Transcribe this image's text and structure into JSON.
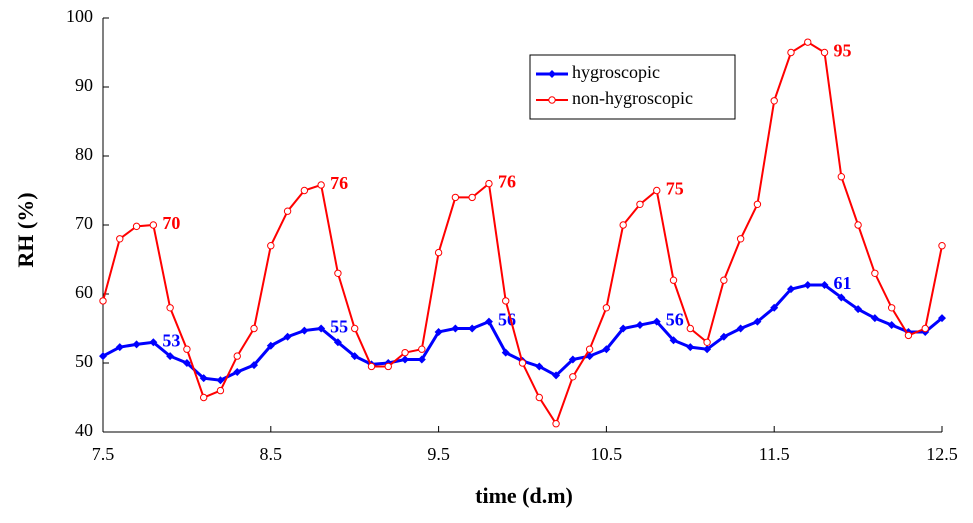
{
  "chart_data": {
    "type": "line",
    "x_label": "time (d.m)",
    "y_label": "RH (%)",
    "x": [
      7.5,
      7.6,
      7.7,
      7.8,
      7.9,
      8.0,
      8.1,
      8.2,
      8.3,
      8.4,
      8.5,
      8.6,
      8.7,
      8.8,
      8.9,
      9.0,
      9.1,
      9.2,
      9.3,
      9.4,
      9.5,
      9.6,
      9.7,
      9.8,
      9.9,
      10.0,
      10.1,
      10.2,
      10.3,
      10.4,
      10.5,
      10.6,
      10.7,
      10.8,
      10.9,
      11.0,
      11.1,
      11.2,
      11.3,
      11.4,
      11.5,
      11.6,
      11.7,
      11.8,
      11.9,
      12.0,
      12.1,
      12.2,
      12.3,
      12.4,
      12.5
    ],
    "series": [
      {
        "name": "hygroscopic",
        "color": "#0000ff",
        "marker": "diamond",
        "values": [
          51,
          52.3,
          52.7,
          53,
          51,
          50,
          47.8,
          47.5,
          48.7,
          49.7,
          52.5,
          53.8,
          54.7,
          55,
          53,
          51,
          49.8,
          50,
          50.5,
          50.5,
          54.5,
          55,
          55,
          56,
          51.5,
          50.3,
          49.5,
          48.2,
          50.5,
          51,
          52,
          55,
          55.5,
          56,
          53.3,
          52.3,
          52,
          53.8,
          55,
          56,
          58,
          60.7,
          61.3,
          61.3,
          59.5,
          57.8,
          56.5,
          55.5,
          54.5,
          54.5,
          56.5
        ],
        "value_labels": [
          null,
          null,
          null,
          "53",
          null,
          null,
          null,
          null,
          null,
          null,
          null,
          null,
          null,
          "55",
          null,
          null,
          null,
          null,
          null,
          null,
          null,
          null,
          null,
          "56",
          null,
          null,
          null,
          null,
          null,
          null,
          null,
          null,
          null,
          "56",
          null,
          null,
          null,
          null,
          null,
          null,
          null,
          null,
          null,
          "61",
          null,
          null,
          null,
          null,
          null,
          null,
          null
        ]
      },
      {
        "name": "non-hygroscopic",
        "color": "#ff0000",
        "marker": "circle",
        "values": [
          59,
          68,
          69.8,
          70,
          58,
          52,
          45,
          46,
          51,
          55,
          67,
          72,
          75,
          75.8,
          63,
          55,
          49.5,
          49.5,
          51.5,
          52,
          66,
          74,
          74,
          76,
          59,
          50,
          45,
          41.2,
          48,
          52,
          58,
          70,
          73,
          75,
          62,
          55,
          53,
          62,
          68,
          73,
          88,
          95,
          96.5,
          95,
          77,
          70,
          63,
          58,
          54,
          55,
          67
        ],
        "value_labels": [
          null,
          null,
          null,
          "70",
          null,
          null,
          null,
          null,
          null,
          null,
          null,
          null,
          null,
          "76",
          null,
          null,
          null,
          null,
          null,
          null,
          null,
          null,
          null,
          "76",
          null,
          null,
          null,
          null,
          null,
          null,
          null,
          null,
          null,
          "75",
          null,
          null,
          null,
          null,
          null,
          null,
          null,
          null,
          null,
          "95",
          null,
          null,
          null,
          null,
          null,
          null,
          null
        ]
      }
    ],
    "xlim": [
      7.5,
      12.5
    ],
    "xticks": [
      7.5,
      8.5,
      9.5,
      10.5,
      11.5,
      12.5
    ],
    "ylim": [
      40,
      100
    ],
    "yticks": [
      40,
      50,
      60,
      70,
      80,
      90,
      100
    ],
    "grid": false,
    "legend": "upper right"
  }
}
